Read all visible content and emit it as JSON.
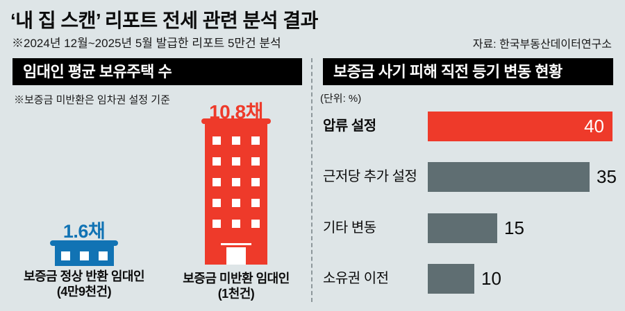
{
  "page": {
    "title": "‘내 집 스캔’ 리포트 전세 관련 분석 결과",
    "subtitle": "※2024년 12월~2025년 5월 발급한 리포트 5만건 분석",
    "source": "자료: 한국부동산데이터연구소"
  },
  "colors": {
    "background": "#dee5e7",
    "red": "#ee3a2a",
    "blue": "#1173b4",
    "slate": "#5f6e72",
    "header_bg": "#000000",
    "divider": "#8d979b"
  },
  "chart_data": [
    {
      "type": "pictogram",
      "title": "임대인 평균 보유주택 수",
      "note": "※보증금 미반환은 임차권 설정 기준",
      "unit": "채",
      "items": [
        {
          "category": "보증금 정상 반환 임대인",
          "sample_size": "(4만9천건)",
          "value": 1.6,
          "value_label": "1.6채",
          "color": "#1173b4"
        },
        {
          "category": "보증금 미반환 임대인",
          "sample_size": "(1천건)",
          "value": 10.8,
          "value_label": "10.8채",
          "color": "#ee3a2a"
        }
      ]
    },
    {
      "type": "bar",
      "orientation": "horizontal",
      "title": "보증금 사기 피해 직전 등기 변동 현황",
      "unit_label": "(단위: %)",
      "categories": [
        "압류 설정",
        "근저당 추가 설정",
        "기타 변동",
        "소유권 이전"
      ],
      "values": [
        40,
        35,
        15,
        10
      ],
      "xlim": [
        0,
        40
      ],
      "highlight_index": 0,
      "highlight_color": "#ee3a2a",
      "bar_color": "#5f6e72",
      "grid": false,
      "legend": false
    }
  ]
}
